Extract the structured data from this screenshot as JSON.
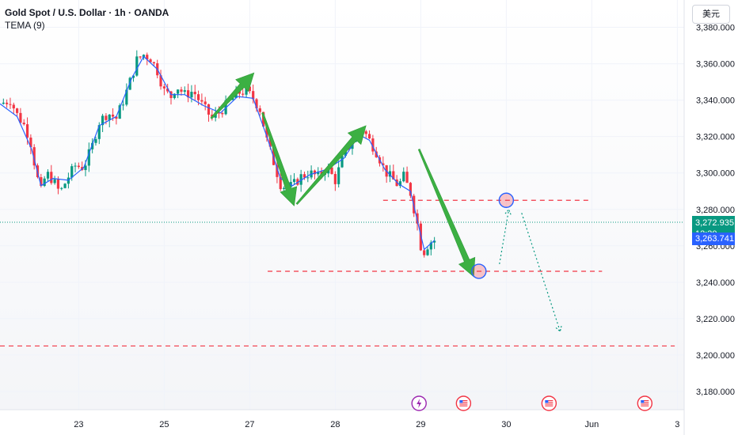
{
  "header": {
    "title": "Gold Spot / U.S. Dollar · 1h · OANDA",
    "indicator": "TEMA (9)"
  },
  "currency_button": "美元",
  "price_tags": {
    "current": "3,272.935",
    "countdown": "12:30",
    "tema": "3,263.741"
  },
  "colors": {
    "up": "#089981",
    "down": "#f23645",
    "tema": "#2962ff",
    "arrow": "#3cb043",
    "level": "#f23645",
    "path": "#089981",
    "current_tag": "#089981",
    "tema_tag": "#2962ff"
  },
  "chart_data": {
    "type": "candlestick",
    "y_ticks": [
      "3,380.000",
      "3,360.000",
      "3,340.000",
      "3,320.000",
      "3,300.000",
      "3,280.000",
      "3,260.000",
      "3,240.000",
      "3,220.000",
      "3,200.000",
      "3,180.000"
    ],
    "y_tick_values": [
      3380,
      3360,
      3340,
      3320,
      3300,
      3280,
      3260,
      3240,
      3220,
      3200,
      3180
    ],
    "ylim": [
      3170,
      3395
    ],
    "x_ticks": [
      "23",
      "25",
      "27",
      "28",
      "29",
      "30",
      "Jun",
      "3"
    ],
    "x_tick_values": [
      0,
      1,
      2,
      3,
      4,
      5,
      6,
      7
    ],
    "xlim": [
      -0.92,
      7.08
    ],
    "price_path": [
      [
        -0.92,
        3338
      ],
      [
        -0.8,
        3340
      ],
      [
        -0.72,
        3332
      ],
      [
        -0.62,
        3325
      ],
      [
        -0.55,
        3315
      ],
      [
        -0.5,
        3300
      ],
      [
        -0.44,
        3290
      ],
      [
        -0.38,
        3300
      ],
      [
        -0.3,
        3296
      ],
      [
        -0.22,
        3289
      ],
      [
        -0.12,
        3298
      ],
      [
        -0.04,
        3304
      ],
      [
        0.06,
        3303
      ],
      [
        0.16,
        3315
      ],
      [
        0.24,
        3328
      ],
      [
        0.34,
        3333
      ],
      [
        0.44,
        3330
      ],
      [
        0.54,
        3342
      ],
      [
        0.62,
        3353
      ],
      [
        0.68,
        3362
      ],
      [
        0.76,
        3365
      ],
      [
        0.84,
        3363
      ],
      [
        0.92,
        3356
      ],
      [
        1.0,
        3345
      ],
      [
        1.08,
        3342
      ],
      [
        1.14,
        3348
      ],
      [
        1.24,
        3343
      ],
      [
        1.34,
        3345
      ],
      [
        1.46,
        3336
      ],
      [
        1.56,
        3330
      ],
      [
        1.66,
        3334
      ],
      [
        1.76,
        3339
      ],
      [
        1.86,
        3344
      ],
      [
        1.96,
        3345
      ],
      [
        2.04,
        3341
      ],
      [
        2.12,
        3335
      ],
      [
        2.2,
        3318
      ],
      [
        2.28,
        3306
      ],
      [
        2.36,
        3294
      ],
      [
        2.42,
        3292
      ],
      [
        2.5,
        3293
      ],
      [
        2.6,
        3298
      ],
      [
        2.7,
        3300
      ],
      [
        2.8,
        3298
      ],
      [
        2.9,
        3303
      ],
      [
        3.0,
        3296
      ],
      [
        3.1,
        3310
      ],
      [
        3.2,
        3318
      ],
      [
        3.28,
        3323
      ],
      [
        3.32,
        3324
      ],
      [
        3.4,
        3318
      ],
      [
        3.5,
        3310
      ],
      [
        3.58,
        3301
      ],
      [
        3.66,
        3297
      ],
      [
        3.74,
        3293
      ],
      [
        3.8,
        3298
      ],
      [
        3.88,
        3289
      ],
      [
        3.96,
        3272
      ],
      [
        4.0,
        3260
      ],
      [
        4.04,
        3257
      ],
      [
        4.1,
        3262
      ],
      [
        4.16,
        3263
      ]
    ],
    "tema_path": [
      [
        -0.92,
        3338
      ],
      [
        -0.72,
        3331
      ],
      [
        -0.55,
        3313
      ],
      [
        -0.44,
        3293
      ],
      [
        -0.3,
        3297
      ],
      [
        -0.12,
        3296
      ],
      [
        0.06,
        3303
      ],
      [
        0.24,
        3326
      ],
      [
        0.44,
        3331
      ],
      [
        0.62,
        3352
      ],
      [
        0.76,
        3364
      ],
      [
        0.92,
        3357
      ],
      [
        1.08,
        3343
      ],
      [
        1.24,
        3343
      ],
      [
        1.46,
        3337
      ],
      [
        1.66,
        3333
      ],
      [
        1.86,
        3342
      ],
      [
        2.04,
        3341
      ],
      [
        2.2,
        3320
      ],
      [
        2.36,
        3297
      ],
      [
        2.5,
        3293
      ],
      [
        2.7,
        3299
      ],
      [
        2.9,
        3302
      ],
      [
        3.1,
        3308
      ],
      [
        3.28,
        3321
      ],
      [
        3.4,
        3318
      ],
      [
        3.58,
        3302
      ],
      [
        3.74,
        3294
      ],
      [
        3.88,
        3290
      ],
      [
        3.96,
        3274
      ],
      [
        4.04,
        3258
      ],
      [
        4.16,
        3263
      ]
    ],
    "levels": [
      {
        "value": 3285,
        "x": [
          3.56,
          5.96
        ]
      },
      {
        "value": 3246,
        "x": [
          2.21,
          6.12
        ]
      },
      {
        "value": 3205,
        "x": [
          -0.92,
          6.97
        ]
      }
    ],
    "trend_arrows": [
      {
        "from": [
          1.55,
          3330
        ],
        "to": [
          2.05,
          3355
        ]
      },
      {
        "from": [
          2.15,
          3333
        ],
        "to": [
          2.52,
          3282
        ]
      },
      {
        "from": [
          2.55,
          3283
        ],
        "to": [
          3.36,
          3326
        ]
      },
      {
        "from": [
          3.98,
          3313
        ],
        "to": [
          4.62,
          3243
        ]
      }
    ],
    "projected_path": [
      [
        4.92,
        3250
      ],
      [
        5.03,
        3280
      ],
      [
        5.18,
        3278
      ],
      [
        5.63,
        3213
      ]
    ],
    "markers": [
      {
        "x": 4.68,
        "y": 3246
      },
      {
        "x": 5.0,
        "y": 3285
      }
    ],
    "current_price": 3272.935,
    "tema_value": 3263.741
  }
}
